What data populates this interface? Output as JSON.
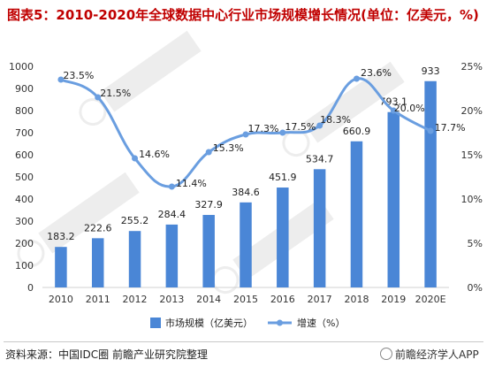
{
  "title": "图表5：2010-2020年全球数据中心行业市场规模增长情况(单位：亿美元，%)",
  "footer": {
    "source_label": "资料来源：",
    "source_text": "中国IDC圈 前瞻产业研究院整理",
    "brand_text": "前瞻经济学人APP"
  },
  "colors": {
    "title": "#c00000",
    "bar": "#4a86d6",
    "line": "#6a9ee0",
    "axis_text": "#333333"
  },
  "chart_data": {
    "type": "bar",
    "title": "",
    "categories": [
      "2010",
      "2011",
      "2012",
      "2013",
      "2014",
      "2015",
      "2016",
      "2017",
      "2018",
      "2019",
      "2020E"
    ],
    "series": [
      {
        "name": "市场规模（亿美元）",
        "type": "bar",
        "axis": "left",
        "values": [
          183.2,
          222.6,
          255.2,
          284.4,
          327.9,
          384.6,
          451.9,
          534.7,
          660.9,
          793.1,
          933
        ],
        "labels": [
          "183.2",
          "222.6",
          "255.2",
          "284.4",
          "327.9",
          "384.6",
          "451.9",
          "534.7",
          "660.9",
          "793.1",
          "933"
        ]
      },
      {
        "name": "增速（%）",
        "type": "line",
        "smooth": true,
        "axis": "right",
        "values": [
          23.5,
          21.5,
          14.6,
          11.4,
          15.3,
          17.3,
          17.5,
          18.3,
          23.6,
          20.0,
          17.7
        ],
        "labels": [
          "23.5%",
          "21.5%",
          "14.6%",
          "11.4%",
          "15.3%",
          "17.3%",
          "17.5%",
          "18.3%",
          "23.6%",
          "20.0%",
          "17.7%"
        ]
      }
    ],
    "y_left": {
      "min": 0,
      "max": 1000,
      "ticks": [
        "0",
        "100",
        "200",
        "300",
        "400",
        "500",
        "600",
        "700",
        "800",
        "900",
        "1000"
      ]
    },
    "y_right": {
      "min": 0,
      "max": 25,
      "ticks": [
        "0%",
        "5%",
        "10%",
        "15%",
        "20%",
        "25%"
      ]
    },
    "grid": false,
    "legend_position": "bottom"
  }
}
